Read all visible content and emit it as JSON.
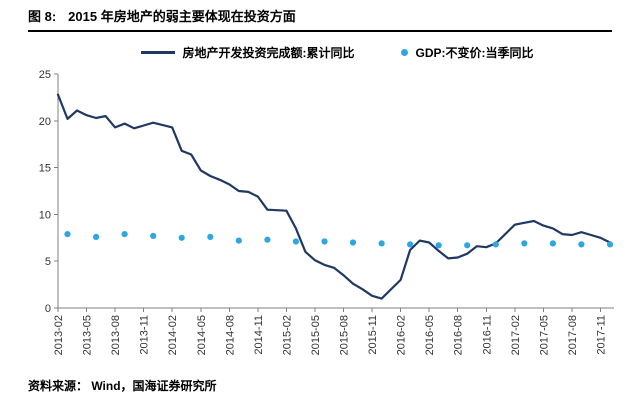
{
  "header": {
    "title_prefix": "图 8:",
    "title": "2015 年房地产的弱主要体现在投资方面"
  },
  "footer": {
    "source": "资料来源：  Wind，国海证券研究所"
  },
  "colors": {
    "line_series": "#1F3864",
    "dot_series": "#2EA6E0",
    "axis": "#808080"
  },
  "chart_data": {
    "type": "line",
    "title": "",
    "xlabel": "",
    "ylabel": "",
    "ylim": [
      0,
      25
    ],
    "yticks": [
      0,
      5,
      10,
      15,
      20,
      25
    ],
    "grid": false,
    "legend_position": "top-center",
    "xticks": [
      "2013-02",
      "2013-05",
      "2013-08",
      "2013-11",
      "2014-02",
      "2014-05",
      "2014-08",
      "2014-11",
      "2015-02",
      "2015-05",
      "2015-08",
      "2015-11",
      "2016-02",
      "2016-05",
      "2016-08",
      "2016-11",
      "2017-02",
      "2017-05",
      "2017-08",
      "2017-11"
    ],
    "series": [
      {
        "name": "房地产开发投资完成额:累计同比",
        "type": "line",
        "color": "#1F3864",
        "points": [
          [
            "2013-02",
            22.8
          ],
          [
            "2013-03",
            20.2
          ],
          [
            "2013-04",
            21.1
          ],
          [
            "2013-05",
            20.6
          ],
          [
            "2013-06",
            20.3
          ],
          [
            "2013-07",
            20.5
          ],
          [
            "2013-08",
            19.3
          ],
          [
            "2013-09",
            19.7
          ],
          [
            "2013-10",
            19.2
          ],
          [
            "2013-11",
            19.5
          ],
          [
            "2013-12",
            19.8
          ],
          [
            "2014-02",
            19.3
          ],
          [
            "2014-03",
            16.8
          ],
          [
            "2014-04",
            16.4
          ],
          [
            "2014-05",
            14.7
          ],
          [
            "2014-06",
            14.1
          ],
          [
            "2014-07",
            13.7
          ],
          [
            "2014-08",
            13.2
          ],
          [
            "2014-09",
            12.5
          ],
          [
            "2014-10",
            12.4
          ],
          [
            "2014-11",
            11.9
          ],
          [
            "2014-12",
            10.5
          ],
          [
            "2015-02",
            10.4
          ],
          [
            "2015-03",
            8.5
          ],
          [
            "2015-04",
            6.0
          ],
          [
            "2015-05",
            5.1
          ],
          [
            "2015-06",
            4.6
          ],
          [
            "2015-07",
            4.3
          ],
          [
            "2015-08",
            3.5
          ],
          [
            "2015-09",
            2.6
          ],
          [
            "2015-10",
            2.0
          ],
          [
            "2015-11",
            1.3
          ],
          [
            "2015-12",
            1.0
          ],
          [
            "2016-02",
            3.0
          ],
          [
            "2016-03",
            6.2
          ],
          [
            "2016-04",
            7.2
          ],
          [
            "2016-05",
            7.0
          ],
          [
            "2016-06",
            6.1
          ],
          [
            "2016-07",
            5.3
          ],
          [
            "2016-08",
            5.4
          ],
          [
            "2016-09",
            5.8
          ],
          [
            "2016-10",
            6.6
          ],
          [
            "2016-11",
            6.5
          ],
          [
            "2016-12",
            6.9
          ],
          [
            "2017-02",
            8.9
          ],
          [
            "2017-03",
            9.1
          ],
          [
            "2017-04",
            9.3
          ],
          [
            "2017-05",
            8.8
          ],
          [
            "2017-06",
            8.5
          ],
          [
            "2017-07",
            7.9
          ],
          [
            "2017-08",
            7.8
          ],
          [
            "2017-09",
            8.1
          ],
          [
            "2017-10",
            7.8
          ],
          [
            "2017-11",
            7.5
          ],
          [
            "2017-12",
            7.0
          ]
        ]
      },
      {
        "name": "GDP:不变价:当季同比",
        "type": "scatter",
        "color": "#2EA6E0",
        "points": [
          [
            "2013-03",
            7.9
          ],
          [
            "2013-06",
            7.6
          ],
          [
            "2013-09",
            7.9
          ],
          [
            "2013-12",
            7.7
          ],
          [
            "2014-03",
            7.5
          ],
          [
            "2014-06",
            7.6
          ],
          [
            "2014-09",
            7.2
          ],
          [
            "2014-12",
            7.3
          ],
          [
            "2015-03",
            7.1
          ],
          [
            "2015-06",
            7.1
          ],
          [
            "2015-09",
            7.0
          ],
          [
            "2015-12",
            6.9
          ],
          [
            "2016-03",
            6.8
          ],
          [
            "2016-06",
            6.7
          ],
          [
            "2016-09",
            6.7
          ],
          [
            "2016-12",
            6.8
          ],
          [
            "2017-03",
            6.9
          ],
          [
            "2017-06",
            6.9
          ],
          [
            "2017-09",
            6.8
          ],
          [
            "2017-12",
            6.8
          ]
        ]
      }
    ]
  }
}
